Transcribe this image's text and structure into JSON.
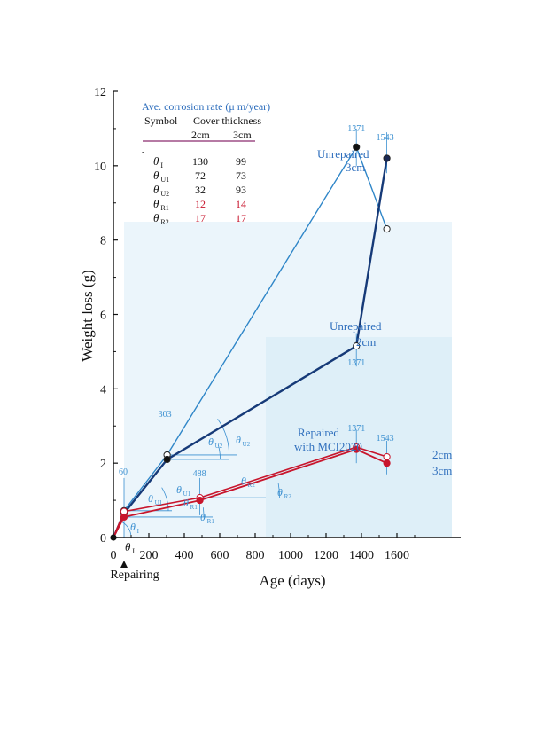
{
  "colors": {
    "unrepaired_3cm": "#2f86c8",
    "unrepaired_2cm": "#163a78",
    "repaired": "#c8152c",
    "annotation": "#3a8fd0",
    "axis": "#111111",
    "wash": "#e3f1fa"
  },
  "chart_data": {
    "type": "line",
    "xlabel": "Age (days)",
    "ylabel": "Weight loss   (g)",
    "xlim": [
      0,
      1800
    ],
    "ylim": [
      0,
      12
    ],
    "xticks": [
      0,
      200,
      400,
      600,
      800,
      1000,
      1200,
      1400,
      1600
    ],
    "yticks": [
      0,
      2,
      4,
      6,
      8,
      10,
      12
    ],
    "grid": false,
    "marker_label": "Repairing",
    "series": [
      {
        "key": "u3",
        "marker": "circle",
        "x": [
          0,
          60,
          303,
          1371,
          1543
        ],
        "y": [
          0,
          0.72,
          2.22,
          10.5,
          8.3
        ]
      },
      {
        "key": "u2",
        "marker": "circle",
        "x": [
          0,
          60,
          303,
          1371,
          1543
        ],
        "y": [
          0,
          0.65,
          2.1,
          5.15,
          10.2
        ]
      },
      {
        "key": "r2",
        "marker": "circle",
        "x": [
          0,
          60,
          488,
          1371,
          1543
        ],
        "y": [
          0,
          0.7,
          1.07,
          2.43,
          2.17
        ]
      },
      {
        "key": "r3",
        "marker": "circle",
        "x": [
          0,
          60,
          488,
          1371,
          1543
        ],
        "y": [
          0,
          0.55,
          1.0,
          2.37,
          2.0
        ]
      }
    ],
    "annotations": {
      "day_labels": [
        "60",
        "303",
        "488",
        "1371",
        "1371",
        "1371",
        "1543",
        "1543"
      ],
      "series_labels": [
        {
          "line1": "Unrepaired",
          "line2": "3cm"
        },
        {
          "line1": "Unrepaired",
          "line2": "2cm"
        },
        {
          "line1": "Repaired",
          "line2": "with MCI2020"
        },
        {
          "line1": "2cm",
          "line2": ""
        },
        {
          "line1": "3cm",
          "line2": ""
        }
      ],
      "angle_labels": [
        {
          "sym": "θ",
          "sub": "I"
        },
        {
          "sym": "θ",
          "sub": "U1"
        },
        {
          "sym": "θ",
          "sub": "U1"
        },
        {
          "sym": "θ",
          "sub": "U2"
        },
        {
          "sym": "θ",
          "sub": "U2"
        },
        {
          "sym": "θ",
          "sub": "R1"
        },
        {
          "sym": "θ",
          "sub": "R1"
        },
        {
          "sym": "θ",
          "sub": "R2"
        },
        {
          "sym": "θ",
          "sub": "R2"
        },
        {
          "sym": "θ",
          "sub": "I"
        }
      ]
    },
    "table": {
      "title": "Ave. corrosion rate (μ m/year)",
      "col_symbol": "Symbol",
      "col_cover": "Cover thickness",
      "sub_2cm": "2cm",
      "sub_3cm": "3cm",
      "rows": [
        {
          "sym": "θ",
          "sub": "I",
          "v2": "130",
          "v3": "99",
          "highlight": false
        },
        {
          "sym": "θ",
          "sub": "U1",
          "v2": "72",
          "v3": "73",
          "highlight": false
        },
        {
          "sym": "θ",
          "sub": "U2",
          "v2": "32",
          "v3": "93",
          "highlight": false
        },
        {
          "sym": "θ",
          "sub": "R1",
          "v2": "12",
          "v3": "14",
          "highlight": true
        },
        {
          "sym": "θ",
          "sub": "R2",
          "v2": "17",
          "v3": "17",
          "highlight": true
        }
      ]
    }
  }
}
